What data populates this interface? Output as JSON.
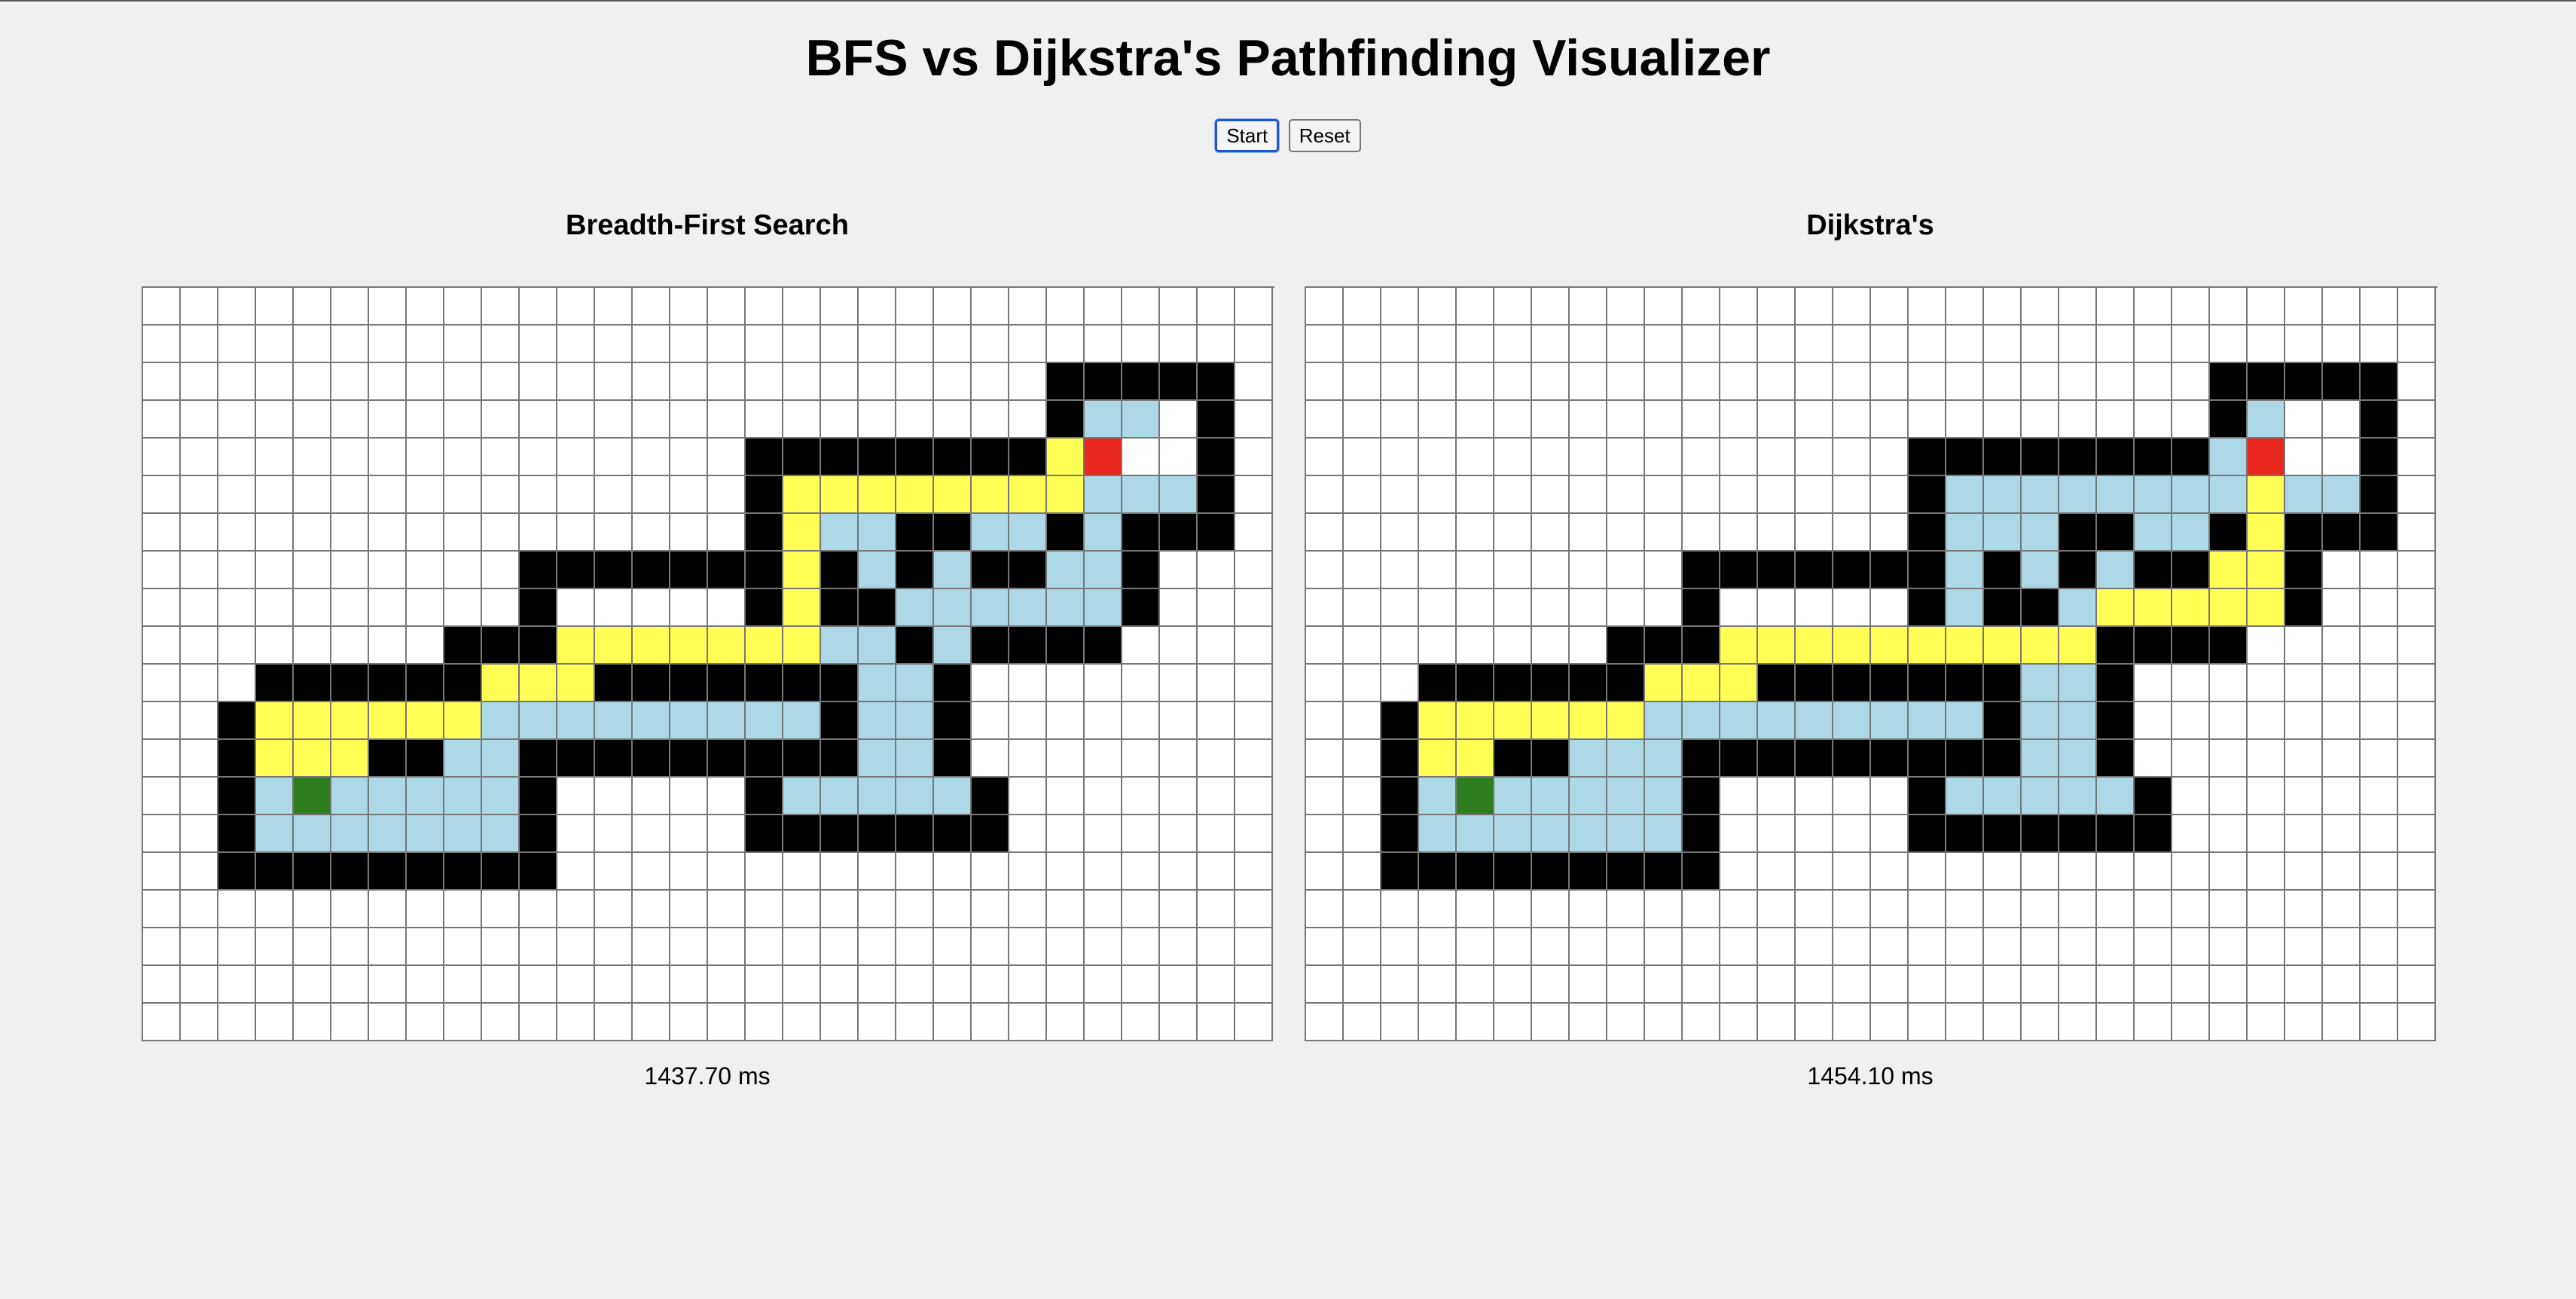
{
  "title": "BFS vs Dijkstra's Pathfinding Visualizer",
  "controls": {
    "start_label": "Start",
    "reset_label": "Reset"
  },
  "colors": {
    "empty": "#ffffff",
    "wall": "#000000",
    "visited": "#add8e6",
    "path": "#ffff55",
    "start": "#2e7d1f",
    "end": "#e8281e",
    "grid_line": "#777777"
  },
  "legend": {
    ".": "empty",
    "#": "wall",
    "v": "visited",
    "p": "path",
    "S": "start",
    "E": "end"
  },
  "panels": [
    {
      "title": "Breadth-First Search",
      "time": "1437.70 ms",
      "rows": [
        "..............................",
        "..............................",
        "........................#####.",
        "........................#vv.#.",
        "................########pE..#.",
        "................#ppppppppvvv#.",
        "................#pvv##vv#v###.",
        "..........#######p#v#v##vv#...",
        "..........#.....#p##vvvvvv#...",
        "........###pppppppvv#v####....",
        "...######ppp#######vv#........",
        "..#ppppppvvvvvvvvv#vv#........",
        "..#ppp##vv#########vv#........",
        "..#vSvvvvv#.....#vvvvv#.......",
        "..#vvvvvvv#.....#######.......",
        "..#########...................",
        "..............................",
        "..............................",
        "..............................",
        ".............................."
      ]
    },
    {
      "title": "Dijkstra's",
      "time": "1454.10 ms",
      "rows": [
        "..............................",
        "..............................",
        "........................#####.",
        "........................#v..#.",
        "................########vE..#.",
        "................#vvvvvvvvpvv#.",
        "................#vvv##vv#p###.",
        "..........#######v#v#v##pp#...",
        "..........#.....#v##vppppp#...",
        "........###pppppppppp####.....",
        "...######ppp#######vv#........",
        "..#ppppppvvvvvvvvv#vv#........",
        "..#pp##vvv#########vv#........",
        "..#vSvvvvv#.....#vvvvv#.......",
        "..#vvvvvvv#.....#######.......",
        "..#########...................",
        "..............................",
        "..............................",
        "..............................",
        ".............................."
      ]
    }
  ]
}
